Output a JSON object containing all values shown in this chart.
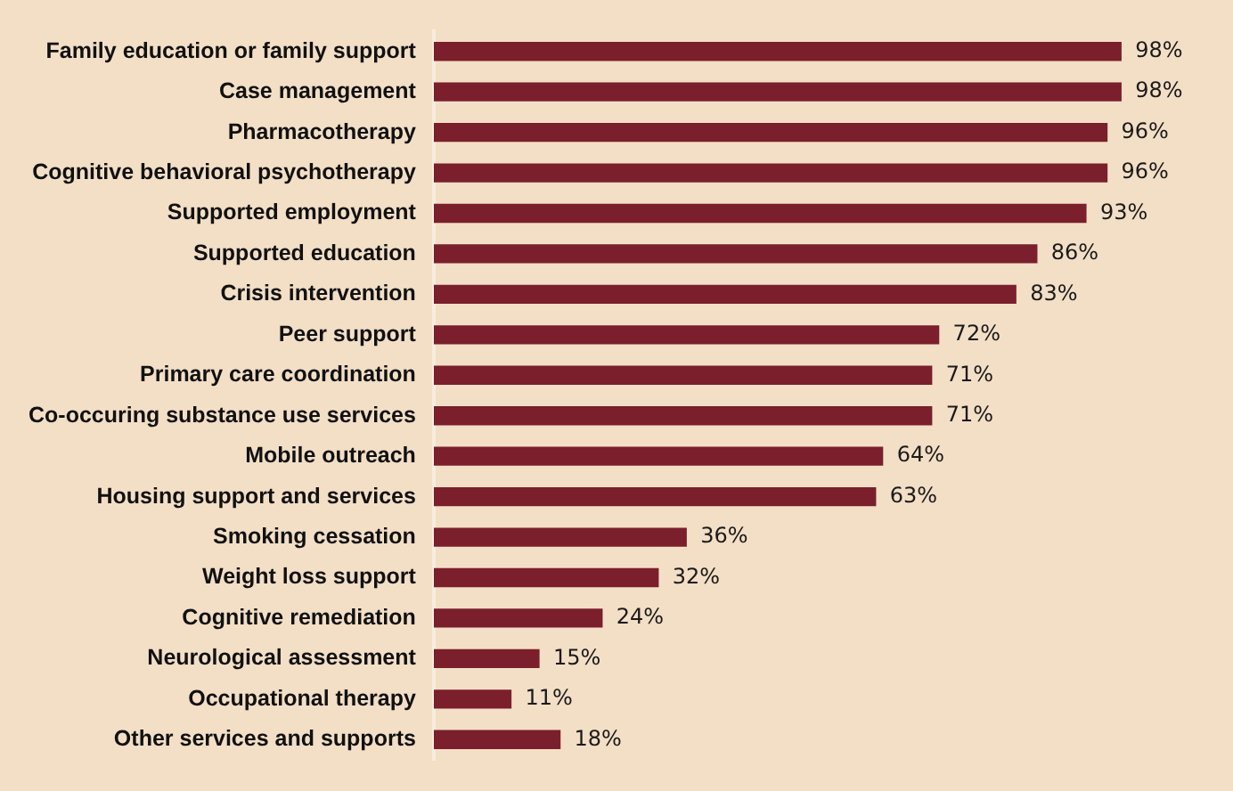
{
  "chart_data": {
    "type": "bar",
    "orientation": "horizontal",
    "categories": [
      "Family education or family support",
      "Case management",
      "Pharmacotherapy",
      "Cognitive behavioral psychotherapy",
      "Supported employment",
      "Supported education",
      "Crisis intervention",
      "Peer support",
      "Primary care coordination",
      "Co-occuring substance use services",
      "Mobile outreach",
      "Housing support and services",
      "Smoking cessation",
      "Weight loss support",
      "Cognitive remediation",
      "Neurological assessment",
      "Occupational therapy",
      "Other services and supports"
    ],
    "values": [
      98,
      98,
      96,
      96,
      93,
      86,
      83,
      72,
      71,
      71,
      64,
      63,
      36,
      32,
      24,
      15,
      11,
      18
    ],
    "value_labels": [
      "98%",
      "98%",
      "96%",
      "96%",
      "93%",
      "86%",
      "83%",
      "72%",
      "71%",
      "71%",
      "64%",
      "63%",
      "36%",
      "32%",
      "24%",
      "15%",
      "11%",
      "18%"
    ],
    "color": "#7a1f2b",
    "tick_labels": "y",
    "grid": false,
    "legend": false
  }
}
